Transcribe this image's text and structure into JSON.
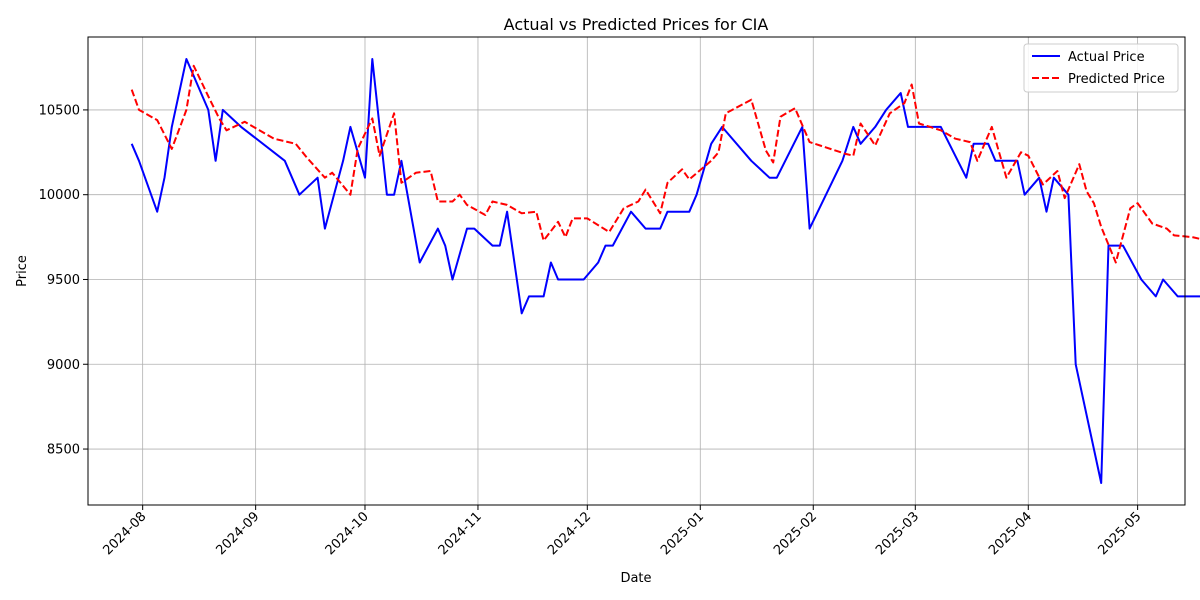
{
  "chart_data": {
    "type": "line",
    "title": "Actual vs Predicted Prices for CIA",
    "xlabel": "Date",
    "ylabel": "Price",
    "x_ticks": [
      "2024-08",
      "2024-09",
      "2024-10",
      "2024-11",
      "2024-12",
      "2025-01",
      "2025-02",
      "2025-03",
      "2025-04",
      "2025-05"
    ],
    "y_ticks": [
      8500,
      9000,
      9500,
      10000,
      10500
    ],
    "xlim": [
      "2024-07-17",
      "2025-05-14"
    ],
    "ylim": [
      8170,
      10930
    ],
    "grid": true,
    "legend_position": "top-right",
    "series": [
      {
        "name": "Actual Price",
        "color": "#0000ff",
        "style": "solid",
        "points": [
          [
            "2024-07-29",
            10300
          ],
          [
            "2024-07-31",
            10200
          ],
          [
            "2024-08-05",
            9900
          ],
          [
            "2024-08-07",
            10100
          ],
          [
            "2024-08-09",
            10400
          ],
          [
            "2024-08-13",
            10800
          ],
          [
            "2024-08-19",
            10500
          ],
          [
            "2024-08-21",
            10200
          ],
          [
            "2024-08-23",
            10500
          ],
          [
            "2024-08-28",
            10400
          ],
          [
            "2024-09-09",
            10200
          ],
          [
            "2024-09-13",
            10000
          ],
          [
            "2024-09-18",
            10100
          ],
          [
            "2024-09-20",
            9800
          ],
          [
            "2024-09-25",
            10200
          ],
          [
            "2024-09-27",
            10400
          ],
          [
            "2024-10-01",
            10100
          ],
          [
            "2024-10-03",
            10800
          ],
          [
            "2024-10-07",
            10000
          ],
          [
            "2024-10-09",
            10000
          ],
          [
            "2024-10-11",
            10200
          ],
          [
            "2024-10-16",
            9600
          ],
          [
            "2024-10-21",
            9800
          ],
          [
            "2024-10-23",
            9700
          ],
          [
            "2024-10-25",
            9500
          ],
          [
            "2024-10-29",
            9800
          ],
          [
            "2024-10-31",
            9800
          ],
          [
            "2024-11-05",
            9700
          ],
          [
            "2024-11-07",
            9700
          ],
          [
            "2024-11-09",
            9900
          ],
          [
            "2024-11-13",
            9300
          ],
          [
            "2024-11-15",
            9400
          ],
          [
            "2024-11-19",
            9400
          ],
          [
            "2024-11-21",
            9600
          ],
          [
            "2024-11-23",
            9500
          ],
          [
            "2024-11-28",
            9500
          ],
          [
            "2024-11-30",
            9500
          ],
          [
            "2024-12-04",
            9600
          ],
          [
            "2024-12-06",
            9700
          ],
          [
            "2024-12-08",
            9700
          ],
          [
            "2024-12-13",
            9900
          ],
          [
            "2024-12-17",
            9800
          ],
          [
            "2024-12-21",
            9800
          ],
          [
            "2024-12-23",
            9900
          ],
          [
            "2024-12-29",
            9900
          ],
          [
            "2024-12-31",
            10000
          ],
          [
            "2025-01-04",
            10300
          ],
          [
            "2025-01-07",
            10400
          ],
          [
            "2025-01-15",
            10200
          ],
          [
            "2025-01-20",
            10100
          ],
          [
            "2025-01-22",
            10100
          ],
          [
            "2025-01-29",
            10400
          ],
          [
            "2025-01-31",
            9800
          ],
          [
            "2025-02-09",
            10200
          ],
          [
            "2025-02-12",
            10400
          ],
          [
            "2025-02-14",
            10300
          ],
          [
            "2025-02-18",
            10400
          ],
          [
            "2025-02-21",
            10500
          ],
          [
            "2025-02-25",
            10600
          ],
          [
            "2025-02-27",
            10400
          ],
          [
            "2025-03-04",
            10400
          ],
          [
            "2025-03-08",
            10400
          ],
          [
            "2025-03-15",
            10100
          ],
          [
            "2025-03-17",
            10300
          ],
          [
            "2025-03-21",
            10300
          ],
          [
            "2025-03-23",
            10200
          ],
          [
            "2025-03-29",
            10200
          ],
          [
            "2025-03-31",
            10000
          ],
          [
            "2025-04-04",
            10100
          ],
          [
            "2025-04-06",
            9900
          ],
          [
            "2025-04-08",
            10100
          ],
          [
            "2025-04-12",
            10000
          ],
          [
            "2025-04-14",
            9000
          ],
          [
            "2025-04-21",
            8300
          ],
          [
            "2025-04-23",
            9700
          ],
          [
            "2025-04-27",
            9700
          ],
          [
            "2025-05-02",
            9500
          ],
          [
            "2025-05-06",
            9400
          ],
          [
            "2025-05-08",
            9500
          ],
          [
            "2025-05-12",
            9400
          ],
          [
            "2025-05-19",
            9400
          ],
          [
            "2025-05-21",
            9400
          ]
        ]
      },
      {
        "name": "Predicted Price",
        "color": "#ff0000",
        "style": "dashed",
        "points": [
          [
            "2024-07-29",
            10620
          ],
          [
            "2024-07-31",
            10500
          ],
          [
            "2024-08-05",
            10440
          ],
          [
            "2024-08-09",
            10270
          ],
          [
            "2024-08-13",
            10500
          ],
          [
            "2024-08-15",
            10760
          ],
          [
            "2024-08-19",
            10580
          ],
          [
            "2024-08-22",
            10450
          ],
          [
            "2024-08-24",
            10380
          ],
          [
            "2024-08-29",
            10430
          ],
          [
            "2024-09-06",
            10330
          ],
          [
            "2024-09-12",
            10300
          ],
          [
            "2024-09-15",
            10220
          ],
          [
            "2024-09-20",
            10100
          ],
          [
            "2024-09-22",
            10130
          ],
          [
            "2024-09-27",
            10000
          ],
          [
            "2024-09-29",
            10270
          ],
          [
            "2024-10-03",
            10450
          ],
          [
            "2024-10-05",
            10230
          ],
          [
            "2024-10-09",
            10480
          ],
          [
            "2024-10-11",
            10070
          ],
          [
            "2024-10-15",
            10130
          ],
          [
            "2024-10-19",
            10140
          ],
          [
            "2024-10-21",
            9960
          ],
          [
            "2024-10-25",
            9960
          ],
          [
            "2024-10-27",
            10000
          ],
          [
            "2024-10-29",
            9940
          ],
          [
            "2024-11-03",
            9880
          ],
          [
            "2024-11-05",
            9960
          ],
          [
            "2024-11-09",
            9940
          ],
          [
            "2024-11-13",
            9890
          ],
          [
            "2024-11-17",
            9900
          ],
          [
            "2024-11-19",
            9730
          ],
          [
            "2024-11-23",
            9840
          ],
          [
            "2024-11-25",
            9750
          ],
          [
            "2024-11-27",
            9860
          ],
          [
            "2024-12-01",
            9860
          ],
          [
            "2024-12-07",
            9780
          ],
          [
            "2024-12-11",
            9920
          ],
          [
            "2024-12-15",
            9960
          ],
          [
            "2024-12-17",
            10030
          ],
          [
            "2024-12-21",
            9890
          ],
          [
            "2024-12-23",
            10070
          ],
          [
            "2024-12-27",
            10150
          ],
          [
            "2024-12-29",
            10090
          ],
          [
            "2025-01-04",
            10200
          ],
          [
            "2025-01-06",
            10250
          ],
          [
            "2025-01-08",
            10480
          ],
          [
            "2025-01-15",
            10560
          ],
          [
            "2025-01-19",
            10260
          ],
          [
            "2025-01-21",
            10190
          ],
          [
            "2025-01-23",
            10460
          ],
          [
            "2025-01-27",
            10510
          ],
          [
            "2025-01-31",
            10310
          ],
          [
            "2025-02-10",
            10240
          ],
          [
            "2025-02-12",
            10230
          ],
          [
            "2025-02-14",
            10420
          ],
          [
            "2025-02-18",
            10290
          ],
          [
            "2025-02-22",
            10480
          ],
          [
            "2025-02-26",
            10540
          ],
          [
            "2025-02-28",
            10650
          ],
          [
            "2025-03-02",
            10420
          ],
          [
            "2025-03-08",
            10380
          ],
          [
            "2025-03-12",
            10330
          ],
          [
            "2025-03-16",
            10310
          ],
          [
            "2025-03-18",
            10200
          ],
          [
            "2025-03-22",
            10400
          ],
          [
            "2025-03-26",
            10100
          ],
          [
            "2025-03-30",
            10250
          ],
          [
            "2025-04-01",
            10230
          ],
          [
            "2025-04-05",
            10060
          ],
          [
            "2025-04-09",
            10140
          ],
          [
            "2025-04-11",
            9980
          ],
          [
            "2025-04-15",
            10180
          ],
          [
            "2025-04-17",
            10020
          ],
          [
            "2025-04-19",
            9950
          ],
          [
            "2025-04-21",
            9810
          ],
          [
            "2025-04-25",
            9600
          ],
          [
            "2025-04-29",
            9920
          ],
          [
            "2025-05-01",
            9950
          ],
          [
            "2025-05-05",
            9830
          ],
          [
            "2025-05-09",
            9800
          ],
          [
            "2025-05-11",
            9760
          ],
          [
            "2025-05-16",
            9750
          ],
          [
            "2025-05-18",
            9740
          ],
          [
            "2025-05-24",
            9720
          ],
          [
            "2025-05-26",
            9700
          ]
        ]
      }
    ]
  }
}
